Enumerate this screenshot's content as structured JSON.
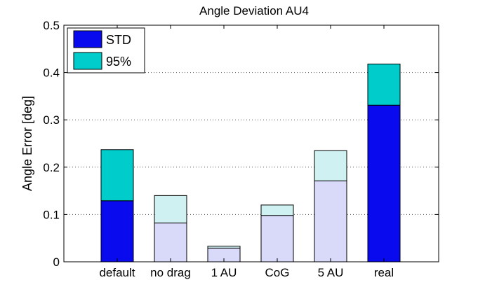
{
  "chart_data": {
    "type": "bar",
    "stacked": true,
    "title": "Angle Deviation AU4",
    "xlabel": "",
    "ylabel": "Angle Error [deg]",
    "ylim": [
      0,
      0.5
    ],
    "yticks": [
      0,
      0.1,
      0.2,
      0.3,
      0.4,
      0.5
    ],
    "ytick_labels": [
      "0",
      "0.1",
      "0.2",
      "0.3",
      "0.4",
      "0.5"
    ],
    "grid": "horizontal dotted",
    "legend_position": "top-left",
    "categories": [
      "default",
      "no drag",
      "1 AU",
      "CoG",
      "5 AU",
      "real"
    ],
    "highlighted": [
      true,
      false,
      false,
      false,
      false,
      true
    ],
    "series": [
      {
        "name": "STD",
        "values": [
          0.129,
          0.082,
          0.029,
          0.098,
          0.171,
          0.331
        ]
      },
      {
        "name": "95%",
        "values": [
          0.108,
          0.058,
          0.004,
          0.022,
          0.064,
          0.087
        ]
      }
    ],
    "colors": {
      "std": "#0a0aee",
      "p95": "#00cccc",
      "std_light": "#d9d9f9",
      "p95_light": "#cff1f1",
      "border": "#000000",
      "grid": "#555555"
    }
  }
}
